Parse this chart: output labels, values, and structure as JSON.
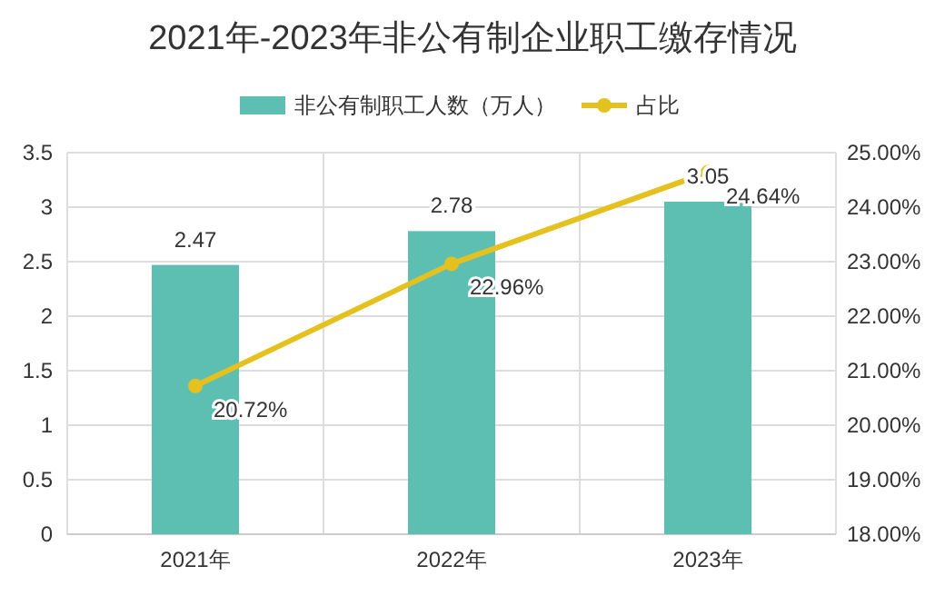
{
  "chart_data": {
    "type": "bar",
    "title": "2021年-2023年非公有制企业职工缴存情况",
    "categories": [
      "2021年",
      "2022年",
      "2023年"
    ],
    "series": [
      {
        "name": "非公有制职工人数（万人）",
        "color": "#5dbfb1",
        "values": [
          2.47,
          2.78,
          3.05
        ],
        "value_labels": [
          "2.47",
          "2.78",
          "3.05"
        ]
      },
      {
        "name": "占比",
        "type": "line",
        "axis": "y2",
        "color": "#e5c11f",
        "values": [
          20.72,
          22.96,
          24.64
        ],
        "value_labels": [
          "20.72%",
          "22.96%",
          "24.64%"
        ],
        "marker": "circle"
      }
    ],
    "ylim": [
      0,
      3.5
    ],
    "yticks": [
      0,
      0.5,
      1,
      1.5,
      2,
      2.5,
      3,
      3.5
    ],
    "y2lim": [
      18,
      25
    ],
    "y2ticks": [
      {
        "value": 18,
        "label": "18.00%"
      },
      {
        "value": 19,
        "label": "19.00%"
      },
      {
        "value": 20,
        "label": "20.00%"
      },
      {
        "value": 21,
        "label": "21.00%"
      },
      {
        "value": 22,
        "label": "22.00%"
      },
      {
        "value": 23,
        "label": "23.00%"
      },
      {
        "value": 24,
        "label": "24.00%"
      },
      {
        "value": 25,
        "label": "25.00%"
      }
    ],
    "grid": true,
    "legend": "top"
  }
}
